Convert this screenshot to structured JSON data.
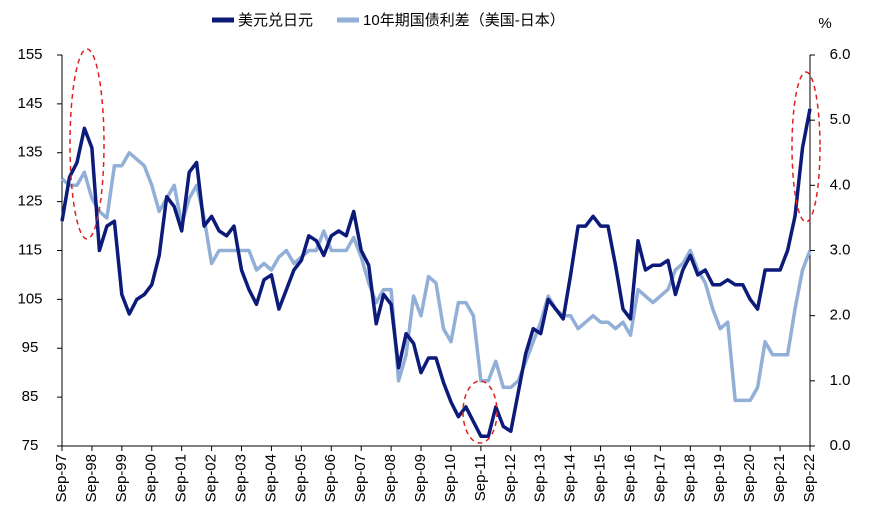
{
  "chart_data": {
    "type": "line",
    "x": [
      "Sep-97",
      "Dec-97",
      "Mar-98",
      "Jun-98",
      "Sep-98",
      "Dec-98",
      "Mar-99",
      "Jun-99",
      "Sep-99",
      "Dec-99",
      "Mar-00",
      "Jun-00",
      "Sep-00",
      "Dec-00",
      "Mar-01",
      "Jun-01",
      "Sep-01",
      "Dec-01",
      "Mar-02",
      "Jun-02",
      "Sep-02",
      "Dec-02",
      "Mar-03",
      "Jun-03",
      "Sep-03",
      "Dec-03",
      "Mar-04",
      "Jun-04",
      "Sep-04",
      "Dec-04",
      "Mar-05",
      "Jun-05",
      "Sep-05",
      "Dec-05",
      "Mar-06",
      "Jun-06",
      "Sep-06",
      "Dec-06",
      "Mar-07",
      "Jun-07",
      "Sep-07",
      "Dec-07",
      "Mar-08",
      "Jun-08",
      "Sep-08",
      "Dec-08",
      "Mar-09",
      "Jun-09",
      "Sep-09",
      "Dec-09",
      "Mar-10",
      "Jun-10",
      "Sep-10",
      "Dec-10",
      "Mar-11",
      "Jun-11",
      "Sep-11",
      "Dec-11",
      "Mar-12",
      "Jun-12",
      "Sep-12",
      "Dec-12",
      "Mar-13",
      "Jun-13",
      "Sep-13",
      "Dec-13",
      "Mar-14",
      "Jun-14",
      "Sep-14",
      "Dec-14",
      "Mar-15",
      "Jun-15",
      "Sep-15",
      "Dec-15",
      "Mar-16",
      "Jun-16",
      "Sep-16",
      "Dec-16",
      "Mar-17",
      "Jun-17",
      "Sep-17",
      "Dec-17",
      "Mar-18",
      "Jun-18",
      "Sep-18",
      "Dec-18",
      "Mar-19",
      "Jun-19",
      "Sep-19",
      "Dec-19",
      "Mar-20",
      "Jun-20",
      "Sep-20",
      "Dec-20",
      "Mar-21",
      "Jun-21",
      "Sep-21",
      "Dec-21",
      "Mar-22",
      "Jun-22",
      "Sep-22"
    ],
    "series": [
      {
        "name": "美元兑日元",
        "color": "#0c1a7a",
        "values": [
          121,
          130,
          133,
          140,
          136,
          115,
          120,
          121,
          106,
          102,
          105,
          106,
          108,
          114,
          126,
          124,
          119,
          131,
          133,
          120,
          122,
          119,
          118,
          120,
          111,
          107,
          104,
          109,
          110,
          103,
          107,
          111,
          113,
          118,
          117,
          114,
          118,
          119,
          118,
          123,
          115,
          112,
          100,
          106,
          104,
          91,
          98,
          96,
          90,
          93,
          93,
          88,
          84,
          81,
          83,
          80,
          77,
          77,
          83,
          79,
          78,
          86,
          94,
          99,
          98,
          105,
          103,
          101,
          110,
          120,
          120,
          122,
          120,
          120,
          112,
          103,
          101,
          117,
          111,
          112,
          112,
          113,
          106,
          111,
          114,
          110,
          111,
          108,
          108,
          109,
          108,
          108,
          105,
          103,
          111,
          111,
          111,
          115,
          122,
          136,
          144
        ]
      },
      {
        "name": "10年期国债利差（美国-日本）",
        "color": "#92afd7",
        "axis": "y2",
        "values": [
          4.1,
          4.0,
          4.0,
          4.2,
          3.8,
          3.6,
          3.5,
          4.3,
          4.3,
          4.5,
          4.4,
          4.3,
          4.0,
          3.6,
          3.8,
          4.0,
          3.4,
          3.8,
          4.0,
          3.5,
          2.8,
          3.0,
          3.0,
          3.0,
          3.0,
          3.0,
          2.7,
          2.8,
          2.7,
          2.9,
          3.0,
          2.8,
          2.9,
          3.0,
          3.0,
          3.3,
          3.0,
          3.0,
          3.0,
          3.2,
          2.9,
          2.5,
          2.2,
          2.4,
          2.4,
          1.0,
          1.4,
          2.3,
          2.0,
          2.6,
          2.5,
          1.8,
          1.6,
          2.2,
          2.2,
          2.0,
          1.0,
          1.0,
          1.3,
          0.9,
          0.9,
          1.0,
          1.3,
          1.6,
          1.9,
          2.3,
          2.1,
          2.0,
          2.0,
          1.8,
          1.9,
          2.0,
          1.9,
          1.9,
          1.8,
          1.9,
          1.7,
          2.4,
          2.3,
          2.2,
          2.3,
          2.4,
          2.7,
          2.8,
          3.0,
          2.7,
          2.5,
          2.1,
          1.8,
          1.9,
          0.7,
          0.7,
          0.7,
          0.9,
          1.6,
          1.4,
          1.4,
          1.4,
          2.1,
          2.7,
          3.0
        ]
      }
    ],
    "ylim": [
      75,
      155
    ],
    "yticks": [
      75,
      85,
      95,
      105,
      115,
      125,
      135,
      145,
      155
    ],
    "y2lim": [
      0,
      6
    ],
    "y2ticks": [
      {
        "value": 0,
        "label": "0.0"
      },
      {
        "value": 1,
        "label": "1.0"
      },
      {
        "value": 2,
        "label": "2.0"
      },
      {
        "value": 3,
        "label": "3.0"
      },
      {
        "value": 4,
        "label": "4.0"
      },
      {
        "value": 5,
        "label": "5.0"
      },
      {
        "value": 6,
        "label": "6.0"
      }
    ],
    "y2_unit": "%",
    "grid": false,
    "legend": "top"
  }
}
